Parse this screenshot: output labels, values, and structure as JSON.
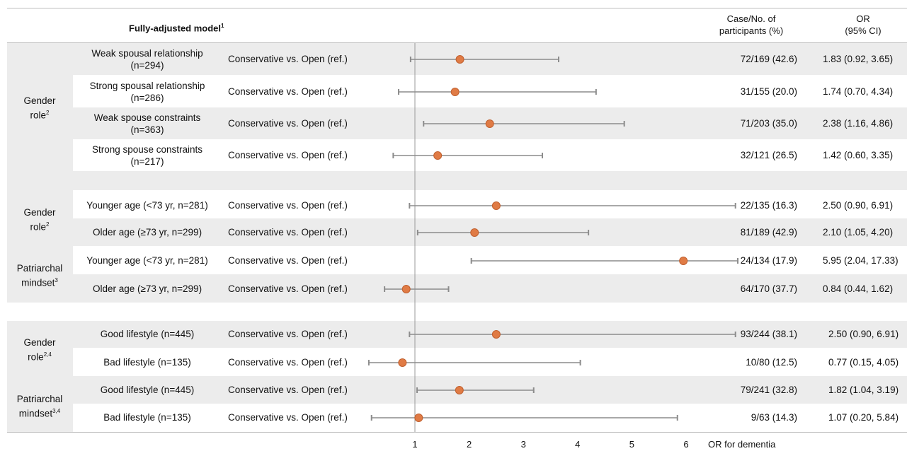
{
  "header": {
    "title": "Fully-adjusted model",
    "title_sup": "1",
    "col_cases_line1": "Case/No. of",
    "col_cases_line2": "participants (%)",
    "col_or_line1": "OR",
    "col_or_line2": "(95% CI)"
  },
  "groups": [
    {
      "line1": "Gender",
      "line2": "role",
      "sup": "2"
    },
    {
      "line1": "Gender",
      "line2": "role",
      "sup": "2"
    },
    {
      "line1": "Patriarchal",
      "line2": "mindset",
      "sup": "3"
    },
    {
      "line1": "Gender",
      "line2": "role",
      "sup": "2,4"
    },
    {
      "line1": "Patriarchal",
      "line2": "mindset",
      "sup": "3,4"
    }
  ],
  "rows": [
    {
      "sub1": "Weak spousal relationship",
      "sub2": "(n=294)",
      "comparison": "Conservative vs. Open (ref.)",
      "cases": "72/169 (42.6)",
      "or_text": "1.83 (0.92, 3.65)"
    },
    {
      "sub1": "Strong spousal relationship",
      "sub2": "(n=286)",
      "comparison": "Conservative vs. Open (ref.)",
      "cases": "31/155 (20.0)",
      "or_text": "1.74 (0.70, 4.34)"
    },
    {
      "sub1": "Weak spouse constraints",
      "sub2": "(n=363)",
      "comparison": "Conservative vs. Open (ref.)",
      "cases": "71/203 (35.0)",
      "or_text": "2.38 (1.16, 4.86)"
    },
    {
      "sub1": "Strong spouse constraints",
      "sub2": "(n=217)",
      "comparison": "Conservative vs. Open (ref.)",
      "cases": "32/121 (26.5)",
      "or_text": "1.42 (0.60, 3.35)"
    },
    {
      "sub1": "Younger age (<73 yr, n=281)",
      "sub2": "",
      "comparison": "Conservative vs. Open (ref.)",
      "cases": "22/135 (16.3)",
      "or_text": "2.50 (0.90, 6.91)"
    },
    {
      "sub1": "Older age (≥73 yr, n=299)",
      "sub2": "",
      "comparison": "Conservative vs. Open (ref.)",
      "cases": "81/189 (42.9)",
      "or_text": "2.10 (1.05, 4.20)"
    },
    {
      "sub1": "Younger age (<73 yr, n=281)",
      "sub2": "",
      "comparison": "Conservative vs. Open (ref.)",
      "cases": "24/134 (17.9)",
      "or_text": "5.95 (2.04, 17.33)"
    },
    {
      "sub1": "Older age (≥73 yr, n=299)",
      "sub2": "",
      "comparison": "Conservative vs. Open (ref.)",
      "cases": "64/170 (37.7)",
      "or_text": "0.84 (0.44, 1.62)"
    },
    {
      "sub1": "Good lifestyle (n=445)",
      "sub2": "",
      "comparison": "Conservative vs. Open (ref.)",
      "cases": "93/244 (38.1)",
      "or_text": "2.50 (0.90, 6.91)"
    },
    {
      "sub1": "Bad lifestyle (n=135)",
      "sub2": "",
      "comparison": "Conservative vs. Open (ref.)",
      "cases": "10/80 (12.5)",
      "or_text": "0.77 (0.15, 4.05)"
    },
    {
      "sub1": "Good lifestyle (n=445)",
      "sub2": "",
      "comparison": "Conservative vs. Open (ref.)",
      "cases": "79/241 (32.8)",
      "or_text": "1.82 (1.04, 3.19)"
    },
    {
      "sub1": "Bad lifestyle (n=135)",
      "sub2": "",
      "comparison": "Conservative vs. Open (ref.)",
      "cases": "9/63 (14.3)",
      "or_text": "1.07 (0.20, 5.84)"
    }
  ],
  "chart_data": {
    "type": "forest",
    "xlabel": "OR for dementia",
    "x_ticks": [
      1,
      2,
      3,
      4,
      5,
      6
    ],
    "reference_line": 1,
    "point_color": "#e07b45",
    "whisker_color": "#8c8c8c",
    "points": [
      {
        "or": 1.83,
        "lo": 0.92,
        "hi": 3.65
      },
      {
        "or": 1.74,
        "lo": 0.7,
        "hi": 4.34
      },
      {
        "or": 2.38,
        "lo": 1.16,
        "hi": 4.86
      },
      {
        "or": 1.42,
        "lo": 0.6,
        "hi": 3.35
      },
      {
        "or": 2.5,
        "lo": 0.9,
        "hi": 6.91
      },
      {
        "or": 2.1,
        "lo": 1.05,
        "hi": 4.2
      },
      {
        "or": 5.95,
        "lo": 2.04,
        "hi": 17.33
      },
      {
        "or": 0.84,
        "lo": 0.44,
        "hi": 1.62
      },
      {
        "or": 2.5,
        "lo": 0.9,
        "hi": 6.91
      },
      {
        "or": 0.77,
        "lo": 0.15,
        "hi": 4.05
      },
      {
        "or": 1.82,
        "lo": 1.04,
        "hi": 3.19
      },
      {
        "or": 1.07,
        "lo": 0.2,
        "hi": 5.84
      }
    ]
  }
}
